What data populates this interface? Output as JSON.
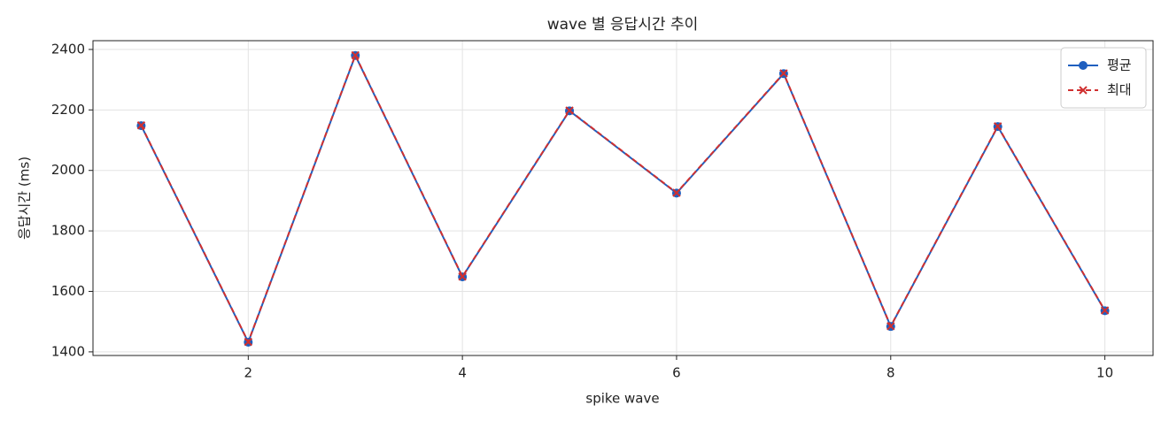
{
  "chart_data": {
    "type": "line",
    "title": "wave 별 응답시간 추이",
    "x_label": "spike wave",
    "y_label": "응답시간 (ms)",
    "x": [
      1,
      2,
      3,
      4,
      5,
      6,
      7,
      8,
      9,
      10
    ],
    "series": [
      {
        "name": "평균",
        "color": "#1f5fbf",
        "marker": "circle",
        "dash": false,
        "values": [
          2148,
          1432,
          2380,
          1648,
          2197,
          1925,
          2320,
          1484,
          2145,
          1536
        ]
      },
      {
        "name": "최대",
        "color": "#d03030",
        "marker": "x",
        "dash": true,
        "values": [
          2149,
          1433,
          2381,
          1649,
          2198,
          1926,
          2321,
          1485,
          2146,
          1537
        ]
      }
    ],
    "xlim": [
      0.55,
      10.45
    ],
    "ylim": [
      1388,
      2429
    ],
    "xticks": [
      2,
      4,
      6,
      8,
      10
    ],
    "yticks": [
      1400,
      1600,
      1800,
      2000,
      2200,
      2400
    ],
    "grid": true,
    "legend": "upper right"
  }
}
